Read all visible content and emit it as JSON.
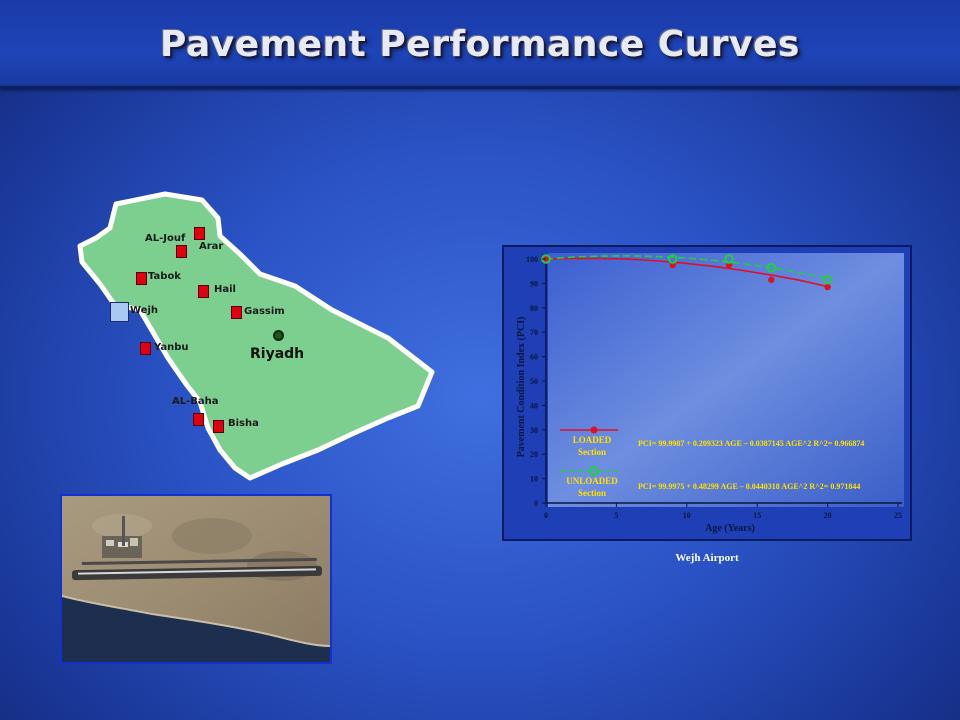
{
  "slide": {
    "title": "Pavement Performance Curves"
  },
  "map": {
    "colors": {
      "land": "#7dcf8f",
      "border": "#ffffff",
      "marker": "#e00010"
    },
    "cities": [
      {
        "name": "AL-Jouf"
      },
      {
        "name": "Arar"
      },
      {
        "name": "Tabok"
      },
      {
        "name": "Hail"
      },
      {
        "name": "Wejh"
      },
      {
        "name": "Gassim"
      },
      {
        "name": "Yanbu"
      },
      {
        "name": "AL-Baha"
      },
      {
        "name": "Bisha"
      }
    ],
    "capital": "Riyadh"
  },
  "chart_caption": "Wejh Airport",
  "chart_data": {
    "type": "line",
    "xlabel": "Age (Years)",
    "ylabel": "Pavement Condition Index (PCI)",
    "xlim": [
      0,
      25
    ],
    "ylim": [
      0,
      100
    ],
    "xticks": [
      "0",
      "5",
      "10",
      "15",
      "20",
      "25"
    ],
    "yticks": [
      "0",
      "10",
      "20",
      "30",
      "40",
      "50",
      "60",
      "70",
      "80",
      "90",
      "100"
    ],
    "grid": false,
    "legend_position": "lower-left",
    "series": [
      {
        "name": "LOADED Section",
        "color": "#e01020",
        "points": [
          [
            0,
            100
          ],
          [
            9,
            97.5
          ],
          [
            13,
            97.5
          ],
          [
            16,
            91.5
          ],
          [
            20,
            88.5
          ]
        ],
        "curve": [
          [
            0,
            100
          ],
          [
            2,
            100.3
          ],
          [
            4,
            100.2
          ],
          [
            6,
            99.9
          ],
          [
            8,
            99.2
          ],
          [
            10,
            98.2
          ],
          [
            12,
            96.9
          ],
          [
            14,
            95.3
          ],
          [
            16,
            93.4
          ],
          [
            18,
            91.3
          ],
          [
            20,
            88.7
          ]
        ],
        "equation": "PCI= 99.9987 + 0.209323 AGE – 0.0387145 AGE^2   R^2= 0.966874"
      },
      {
        "name": "UNLOADED Section",
        "color": "#20d040",
        "points": [
          [
            0,
            100
          ],
          [
            9,
            100
          ],
          [
            13,
            100
          ],
          [
            16,
            96.5
          ],
          [
            20,
            91.5
          ]
        ],
        "curve": [
          [
            0,
            100
          ],
          [
            2,
            100.8
          ],
          [
            4,
            101.2
          ],
          [
            6,
            101.3
          ],
          [
            8,
            101.0
          ],
          [
            10,
            100.4
          ],
          [
            12,
            99.4
          ],
          [
            14,
            98.1
          ],
          [
            16,
            96.4
          ],
          [
            18,
            94.4
          ],
          [
            20,
            92.0
          ]
        ],
        "equation": "PCI= 99.9975 + 0.48299 AGE – 0.0440318 AGE^2   R^2= 0.971844"
      }
    ],
    "legend": {
      "loaded": [
        "LOADED",
        "Section"
      ],
      "unloaded": [
        "UNLOADED",
        "Section"
      ]
    }
  }
}
